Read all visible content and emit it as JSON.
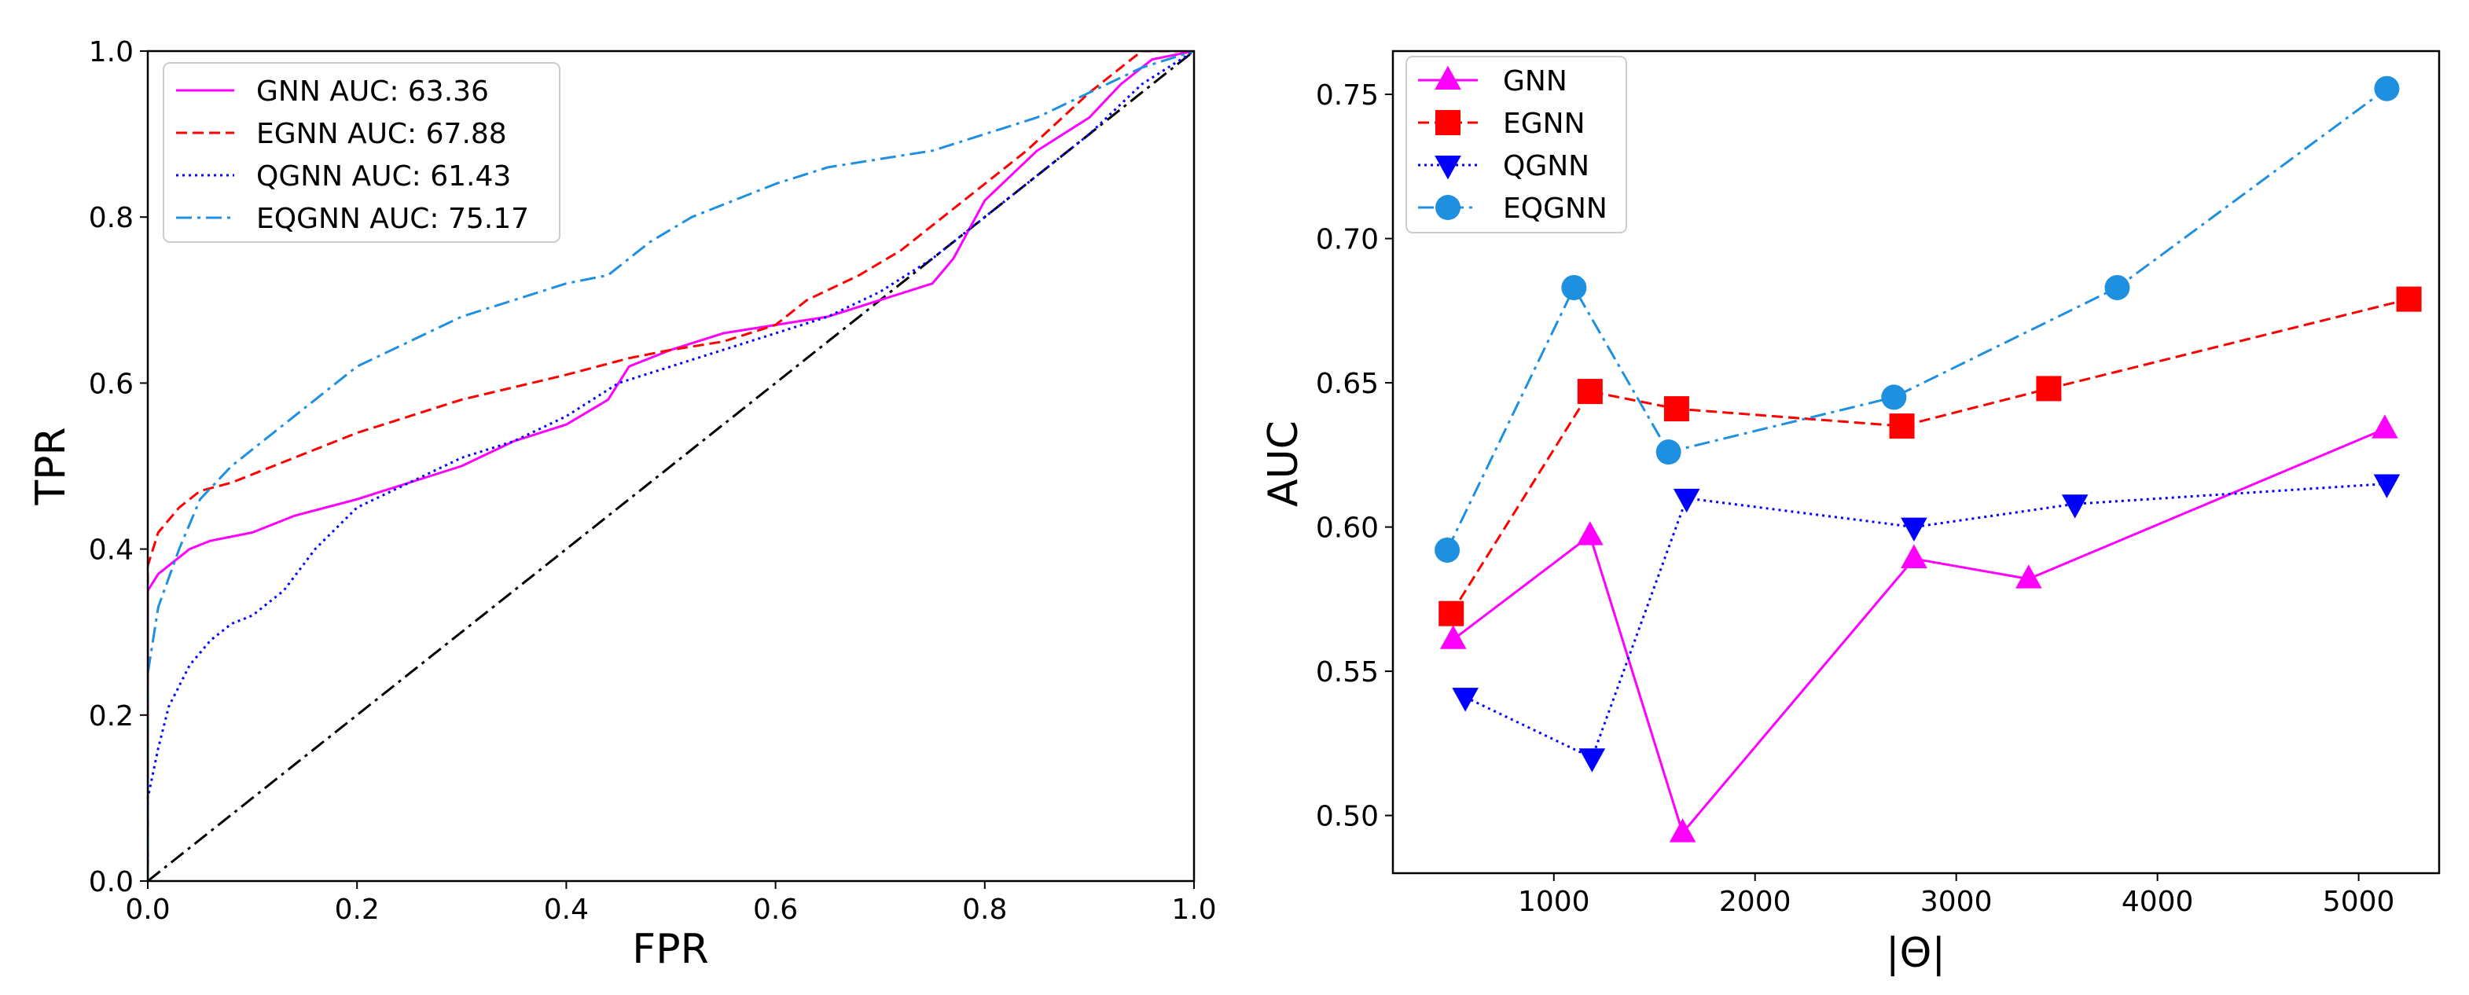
{
  "chart_data": [
    {
      "type": "line",
      "subtype": "roc",
      "xlabel": "FPR",
      "ylabel": "TPR",
      "xlim": [
        0.0,
        1.0
      ],
      "ylim": [
        0.0,
        1.0
      ],
      "xticks": [
        "0.0",
        "0.2",
        "0.4",
        "0.6",
        "0.8",
        "1.0"
      ],
      "yticks": [
        "0.0",
        "0.2",
        "0.4",
        "0.6",
        "0.8",
        "1.0"
      ],
      "legend_position": "top-left",
      "diagonal": {
        "style": "dashdot",
        "color": "#000000",
        "x": [
          0,
          1
        ],
        "y": [
          0,
          1
        ]
      },
      "series": [
        {
          "name": "GNN AUC: 63.36",
          "color": "#ff00ff",
          "style": "solid",
          "x": [
            0.0,
            0.0,
            0.01,
            0.02,
            0.04,
            0.06,
            0.1,
            0.14,
            0.2,
            0.25,
            0.3,
            0.35,
            0.4,
            0.44,
            0.46,
            0.5,
            0.55,
            0.6,
            0.65,
            0.7,
            0.75,
            0.77,
            0.8,
            0.85,
            0.9,
            0.93,
            0.96,
            1.0
          ],
          "y": [
            0.0,
            0.35,
            0.37,
            0.38,
            0.4,
            0.41,
            0.42,
            0.44,
            0.46,
            0.48,
            0.5,
            0.53,
            0.55,
            0.58,
            0.62,
            0.64,
            0.66,
            0.67,
            0.68,
            0.7,
            0.72,
            0.75,
            0.82,
            0.88,
            0.92,
            0.96,
            0.99,
            1.0
          ]
        },
        {
          "name": "EGNN AUC: 67.88",
          "color": "#ff0000",
          "style": "dashed",
          "x": [
            0.0,
            0.0,
            0.01,
            0.03,
            0.05,
            0.08,
            0.12,
            0.2,
            0.3,
            0.4,
            0.46,
            0.5,
            0.55,
            0.6,
            0.63,
            0.68,
            0.72,
            0.78,
            0.84,
            0.9,
            0.95,
            1.0
          ],
          "y": [
            0.0,
            0.38,
            0.42,
            0.45,
            0.47,
            0.48,
            0.5,
            0.54,
            0.58,
            0.61,
            0.63,
            0.64,
            0.65,
            0.67,
            0.7,
            0.73,
            0.76,
            0.82,
            0.88,
            0.95,
            1.0,
            1.0
          ]
        },
        {
          "name": "QGNN AUC: 61.43",
          "color": "#0000ff",
          "style": "dotted",
          "x": [
            0.0,
            0.0,
            0.01,
            0.02,
            0.04,
            0.06,
            0.08,
            0.1,
            0.13,
            0.16,
            0.2,
            0.25,
            0.3,
            0.35,
            0.4,
            0.45,
            0.5,
            0.55,
            0.6,
            0.65,
            0.7,
            0.75,
            0.8,
            0.85,
            0.9,
            0.95,
            1.0
          ],
          "y": [
            0.0,
            0.1,
            0.16,
            0.21,
            0.26,
            0.29,
            0.31,
            0.32,
            0.35,
            0.4,
            0.45,
            0.48,
            0.51,
            0.53,
            0.56,
            0.6,
            0.62,
            0.64,
            0.66,
            0.68,
            0.71,
            0.75,
            0.8,
            0.85,
            0.9,
            0.96,
            1.0
          ]
        },
        {
          "name": "EQGNN AUC: 75.17",
          "color": "#1f8fdf",
          "style": "dashdot",
          "x": [
            0.0,
            0.0,
            0.01,
            0.03,
            0.05,
            0.08,
            0.12,
            0.16,
            0.2,
            0.25,
            0.3,
            0.35,
            0.4,
            0.44,
            0.48,
            0.52,
            0.56,
            0.6,
            0.65,
            0.7,
            0.75,
            0.8,
            0.85,
            0.9,
            0.95,
            1.0
          ],
          "y": [
            0.0,
            0.25,
            0.33,
            0.4,
            0.46,
            0.5,
            0.54,
            0.58,
            0.62,
            0.65,
            0.68,
            0.7,
            0.72,
            0.73,
            0.77,
            0.8,
            0.82,
            0.84,
            0.86,
            0.87,
            0.88,
            0.9,
            0.92,
            0.95,
            0.98,
            1.0
          ]
        }
      ]
    },
    {
      "type": "line",
      "xlabel": "|Θ|",
      "ylabel": "AUC",
      "xlim": [
        200,
        5400
      ],
      "ylim": [
        0.48,
        0.765
      ],
      "xticks": [
        1000,
        2000,
        3000,
        4000,
        5000
      ],
      "yticks": [
        "0.50",
        "0.55",
        "0.60",
        "0.65",
        "0.70",
        "0.75"
      ],
      "legend_position": "top-left",
      "series": [
        {
          "name": "GNN",
          "color": "#ff00ff",
          "style": "solid",
          "marker": "triangle-up",
          "x": [
            500,
            1180,
            1640,
            2790,
            3360,
            5130
          ],
          "y": [
            0.561,
            0.597,
            0.494,
            0.589,
            0.582,
            0.634
          ]
        },
        {
          "name": "EGNN",
          "color": "#ff0000",
          "style": "dashed",
          "marker": "square",
          "x": [
            490,
            1180,
            1610,
            2730,
            3460,
            5250
          ],
          "y": [
            0.57,
            0.647,
            0.641,
            0.635,
            0.648,
            0.679
          ]
        },
        {
          "name": "QGNN",
          "color": "#0000ff",
          "style": "dotted",
          "marker": "triangle-down",
          "x": [
            560,
            1190,
            1660,
            2790,
            3590,
            5140
          ],
          "y": [
            0.541,
            0.52,
            0.61,
            0.6,
            0.608,
            0.615
          ]
        },
        {
          "name": "EQGNN",
          "color": "#1f8fdf",
          "style": "dashdot",
          "marker": "circle",
          "x": [
            470,
            1100,
            1570,
            2690,
            3800,
            5140
          ],
          "y": [
            0.592,
            0.683,
            0.626,
            0.645,
            0.683,
            0.752
          ]
        }
      ]
    }
  ]
}
